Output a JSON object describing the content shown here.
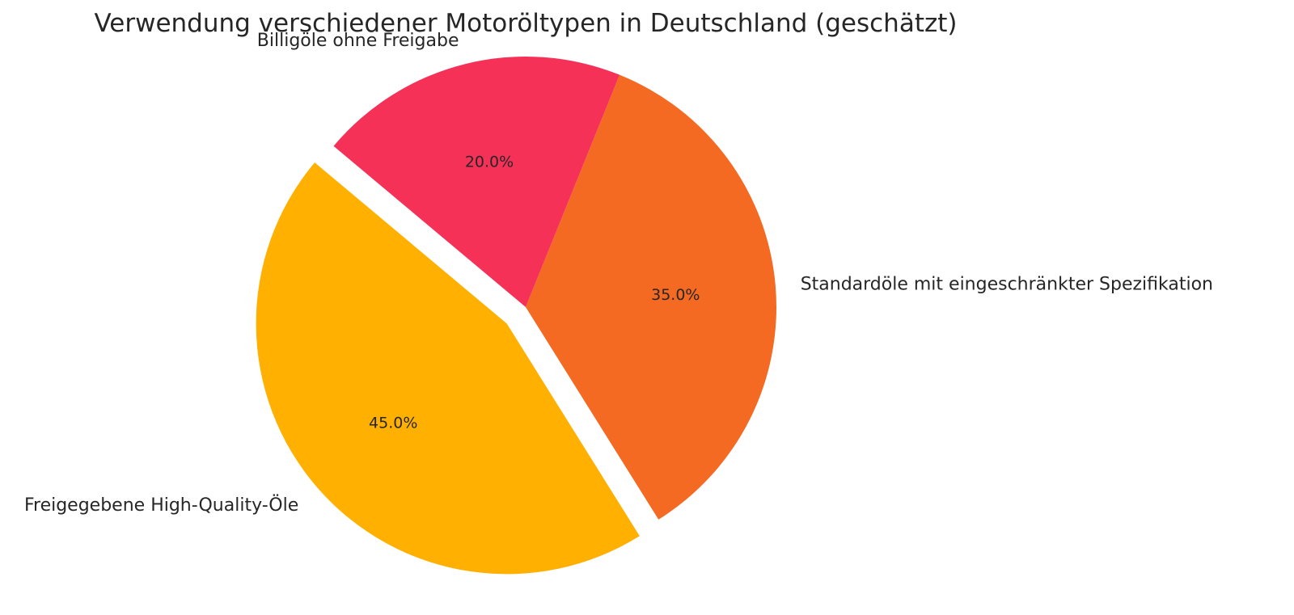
{
  "chart_data": {
    "type": "pie",
    "title": "Verwendung verschiedener Motoröltypen in Deutschland (geschätzt)",
    "slices": [
      {
        "label": "Freigegebene High-Quality-Öle",
        "value": 45.0,
        "pct_label": "45.0%",
        "color": "#FFB000",
        "exploded": true
      },
      {
        "label": "Standardöle mit eingeschränkter Spezifikation",
        "value": 35.0,
        "pct_label": "35.0%",
        "color": "#F46A23",
        "exploded": false
      },
      {
        "label": "Billigöle ohne Freigabe",
        "value": 20.0,
        "pct_label": "20.0%",
        "color": "#F53158",
        "exploded": false
      }
    ],
    "start_angle_deg": 140,
    "direction": "counterclockwise"
  }
}
